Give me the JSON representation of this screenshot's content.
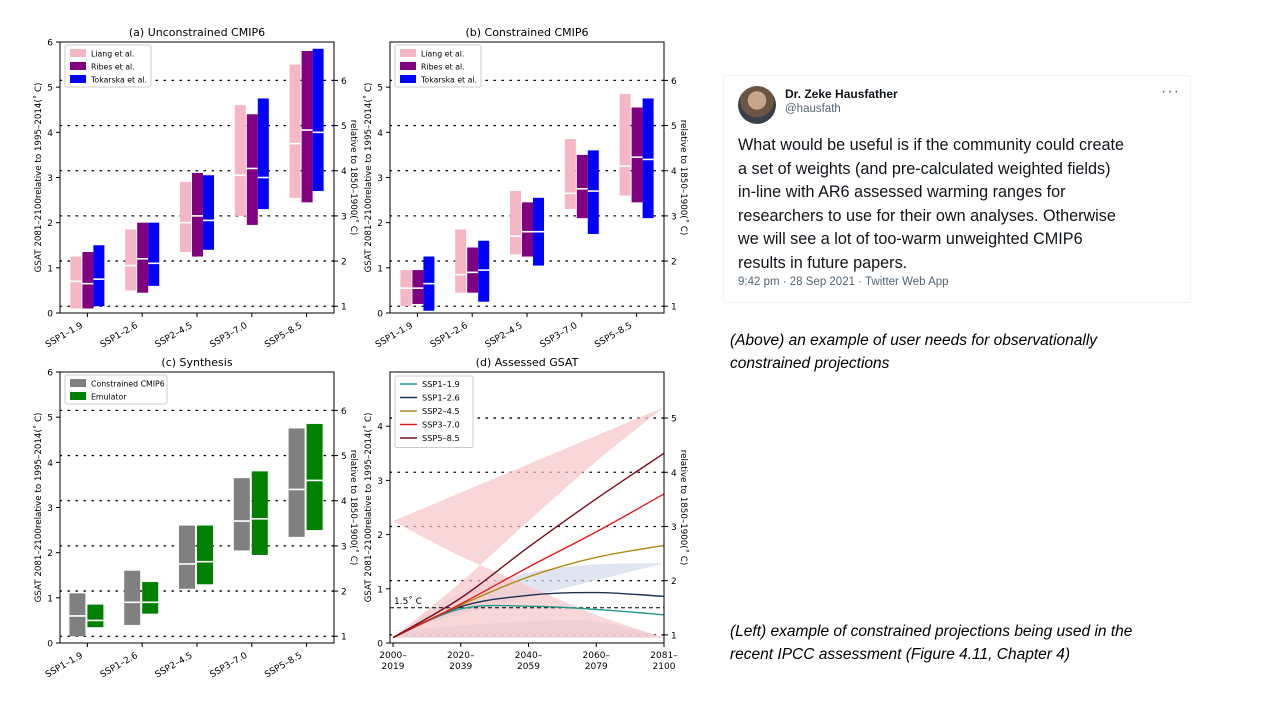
{
  "panels": [
    {
      "title": "(a) Unconstrained CMIP6",
      "ylabel_left": "GSAT 2081–2100relative to 1995–2014(˚ C)",
      "ylabel_right": "relative to 1850–1900(˚ C)",
      "left_ticks": [
        "0",
        "1",
        "2",
        "3",
        "4",
        "5",
        "6"
      ],
      "right_ticks": [
        "1",
        "2",
        "3",
        "4",
        "5",
        "6"
      ],
      "categories": [
        "SSP1–1.9",
        "SSP1–2.6",
        "SSP2–4.5",
        "SSP3–7.0",
        "SSP5–8.5"
      ],
      "legend": [
        "Liang et al.",
        "Ribes et al.",
        "Tokarska et al."
      ]
    },
    {
      "title": "(b) Constrained CMIP6",
      "ylabel_left": "GSAT 2081–2100relative to 1995–2014(˚ C)",
      "ylabel_right": "relative to 1850–1900(˚ C)",
      "left_ticks": [
        "0",
        "1",
        "2",
        "3",
        "4",
        "5"
      ],
      "right_ticks": [
        "1",
        "2",
        "3",
        "4",
        "5",
        "6"
      ],
      "categories": [
        "SSP1–1.9",
        "SSP1–2.6",
        "SSP2–4.5",
        "SSP3–7.0",
        "SSP5–8.5"
      ],
      "legend": [
        "Liang et al.",
        "Ribes et al.",
        "Tokarska et al."
      ]
    },
    {
      "title": "(c) Synthesis",
      "ylabel_left": "GSAT 2081–2100relative to 1995–2014(˚ C)",
      "ylabel_right": "relative to 1850–1900(˚ C)",
      "left_ticks": [
        "0",
        "1",
        "2",
        "3",
        "4",
        "5",
        "6"
      ],
      "right_ticks": [
        "1",
        "2",
        "3",
        "4",
        "5",
        "6"
      ],
      "categories": [
        "SSP1–1.9",
        "SSP1–2.6",
        "SSP2–4.5",
        "SSP3–7.0",
        "SSP5–8.5"
      ],
      "legend": [
        "Constrained CMIP6",
        "Emulator"
      ]
    },
    {
      "title": "(d) Assessed GSAT",
      "ylabel_left": "GSAT 2081–2100relative to 1995–2014(˚ C)",
      "ylabel_right": "relative to 1850–1900(˚ C)",
      "left_ticks": [
        "0",
        "1",
        "2",
        "3",
        "4"
      ],
      "right_ticks": [
        "1",
        "2",
        "3",
        "4",
        "5"
      ],
      "x_ticks": [
        [
          "2000–",
          "2019"
        ],
        [
          "2020–",
          "2039"
        ],
        [
          "2040–",
          "2059"
        ],
        [
          "2060–",
          "2079"
        ],
        [
          "2081–",
          "2100"
        ]
      ],
      "legend": [
        "SSP1–1.9",
        "SSP1–2.6",
        "SSP2–4.5",
        "SSP3–7.0",
        "SSP5–8.5"
      ],
      "annotation": "1.5˚ C"
    }
  ],
  "colors": {
    "liang": "#f5b7c5",
    "ribes": "#800080",
    "tokarska": "#0000ff",
    "constrained": "#808080",
    "emulator": "#008000",
    "ssp119": "#1e9a8a",
    "ssp126": "#1d3354",
    "ssp245": "#b08910",
    "ssp370": "#e31a1c",
    "ssp585": "#7a0b1e",
    "band_high": "#f7c6c9",
    "band_low": "#d7dcec"
  },
  "chart_data": [
    {
      "type": "bar",
      "subtype": "range",
      "title": "(a) Unconstrained CMIP6",
      "ylim": [
        0,
        6
      ],
      "right_axis": "relative to 1850–1900 (offset 0.85)",
      "categories": [
        "SSP1–1.9",
        "SSP1–2.6",
        "SSP2–4.5",
        "SSP3–7.0",
        "SSP5–8.5"
      ],
      "series": [
        {
          "name": "Liang et al.",
          "low": [
            0.1,
            0.5,
            1.35,
            2.15,
            2.55
          ],
          "high": [
            1.25,
            1.85,
            2.9,
            4.6,
            5.5
          ],
          "median": [
            0.7,
            1.05,
            2.0,
            3.05,
            3.75
          ]
        },
        {
          "name": "Ribes et al.",
          "low": [
            0.1,
            0.45,
            1.25,
            1.95,
            2.45
          ],
          "high": [
            1.35,
            2.0,
            3.1,
            4.4,
            5.8
          ],
          "median": [
            0.65,
            1.2,
            2.15,
            3.2,
            4.05
          ]
        },
        {
          "name": "Tokarska et al.",
          "low": [
            0.15,
            0.6,
            1.4,
            2.3,
            2.7
          ],
          "high": [
            1.5,
            2.0,
            3.05,
            4.75,
            5.85
          ],
          "median": [
            0.75,
            1.1,
            2.05,
            3.0,
            4.0
          ]
        }
      ],
      "legend": "top-left",
      "grid": "dotted lines at right-axis integers"
    },
    {
      "type": "bar",
      "subtype": "range",
      "title": "(b) Constrained CMIP6",
      "ylim": [
        0,
        6
      ],
      "right_axis": "relative to 1850–1900 (offset 0.85)",
      "categories": [
        "SSP1–1.9",
        "SSP1–2.6",
        "SSP2–4.5",
        "SSP3–7.0",
        "SSP5–8.5"
      ],
      "series": [
        {
          "name": "Liang et al.",
          "low": [
            0.15,
            0.45,
            1.3,
            2.3,
            2.6
          ],
          "high": [
            0.95,
            1.85,
            2.7,
            3.85,
            4.85
          ],
          "median": [
            0.55,
            0.85,
            1.7,
            2.65,
            3.25
          ]
        },
        {
          "name": "Ribes et al.",
          "low": [
            0.2,
            0.45,
            1.25,
            2.1,
            2.45
          ],
          "high": [
            0.95,
            1.45,
            2.45,
            3.5,
            4.55
          ],
          "median": [
            0.55,
            0.9,
            1.8,
            2.75,
            3.45
          ]
        },
        {
          "name": "Tokarska et al.",
          "low": [
            0.05,
            0.25,
            1.05,
            1.75,
            2.1
          ],
          "high": [
            1.25,
            1.6,
            2.55,
            3.6,
            4.75
          ],
          "median": [
            0.65,
            0.95,
            1.8,
            2.7,
            3.4
          ]
        }
      ],
      "legend": "top-left",
      "grid": "dotted lines at right-axis integers"
    },
    {
      "type": "bar",
      "subtype": "range",
      "title": "(c) Synthesis",
      "ylim": [
        0,
        6
      ],
      "right_axis": "relative to 1850–1900 (offset 0.85)",
      "categories": [
        "SSP1–1.9",
        "SSP1–2.6",
        "SSP2–4.5",
        "SSP3–7.0",
        "SSP5–8.5"
      ],
      "series": [
        {
          "name": "Constrained CMIP6",
          "low": [
            0.15,
            0.4,
            1.2,
            2.05,
            2.35
          ],
          "high": [
            1.1,
            1.6,
            2.6,
            3.65,
            4.75
          ],
          "median": [
            0.6,
            0.9,
            1.75,
            2.7,
            3.4
          ]
        },
        {
          "name": "Emulator",
          "low": [
            0.35,
            0.65,
            1.3,
            1.95,
            2.5
          ],
          "high": [
            0.85,
            1.35,
            2.6,
            3.8,
            4.85
          ],
          "median": [
            0.5,
            0.9,
            1.8,
            2.75,
            3.6
          ]
        }
      ],
      "legend": "top-left",
      "grid": "dotted lines at right-axis integers"
    },
    {
      "type": "line",
      "title": "(d) Assessed GSAT",
      "x": [
        "2000–2019",
        "2020–2039",
        "2040–2059",
        "2060–2079",
        "2081–2100"
      ],
      "ylim": [
        0,
        5
      ],
      "right_axis": "relative to 1850–1900 (offset 0.85)",
      "series": [
        {
          "name": "SSP1–1.9",
          "values": [
            0.1,
            0.63,
            0.68,
            0.62,
            0.52
          ]
        },
        {
          "name": "SSP1–2.6",
          "values": [
            0.1,
            0.67,
            0.88,
            0.93,
            0.86
          ]
        },
        {
          "name": "SSP2–4.5",
          "values": [
            0.1,
            0.7,
            1.22,
            1.58,
            1.8
          ]
        },
        {
          "name": "SSP3–7.0",
          "values": [
            0.1,
            0.72,
            1.4,
            2.05,
            2.75
          ]
        },
        {
          "name": "SSP5–8.5",
          "values": [
            0.1,
            0.83,
            1.77,
            2.66,
            3.5
          ]
        }
      ],
      "bands": [
        {
          "name": "SSP5–8.5 range",
          "low": [
            0.1,
            0.52,
            1.05,
            1.6,
            2.25
          ],
          "high": [
            0.1,
            1.12,
            2.25,
            3.35,
            4.35
          ]
        },
        {
          "name": "SSP1–2.6 range",
          "low": [
            0.1,
            0.4,
            0.4,
            0.32,
            0.22
          ],
          "high": [
            0.1,
            0.92,
            1.3,
            1.45,
            1.47
          ]
        }
      ],
      "hline": {
        "value": 0.65,
        "label": "1.5˚ C"
      },
      "legend": "top-left",
      "grid": "dotted lines at right-axis integers"
    }
  ],
  "tweet": {
    "name": "Dr. Zeke Hausfather",
    "handle": "@hausfath",
    "more": "···",
    "line1": "What would be useful is if the community could create",
    "line2": "a set of weights (and pre-calculated weighted fields)",
    "line3": "in-line with AR6 assessed warming ranges for",
    "line4": "researchers to use for their own analyses. Otherwise",
    "line5": "we will see a lot of too-warm unweighted CMIP6",
    "line6": "results in future papers.",
    "meta": "9:42 pm · 28 Sep 2021 · Twitter Web App"
  },
  "captions": {
    "above_line1": "(Above) an example of user needs for observationally",
    "above_line2": "constrained projections",
    "left_line1": "(Left) example of constrained projections being used in the",
    "left_line2": "recent IPCC assessment (Figure 4.11, Chapter 4)"
  }
}
